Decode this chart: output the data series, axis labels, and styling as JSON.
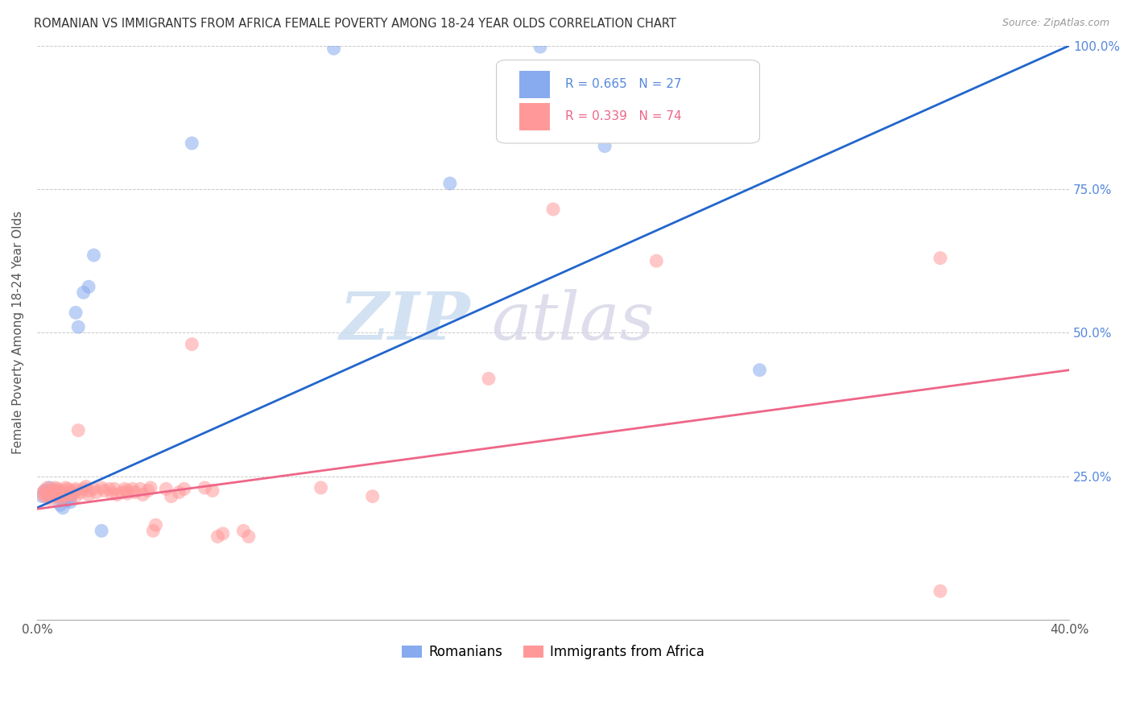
{
  "title": "ROMANIAN VS IMMIGRANTS FROM AFRICA FEMALE POVERTY AMONG 18-24 YEAR OLDS CORRELATION CHART",
  "source": "Source: ZipAtlas.com",
  "ylabel": "Female Poverty Among 18-24 Year Olds",
  "xlim": [
    0.0,
    0.4
  ],
  "ylim": [
    0.0,
    1.0
  ],
  "xticks": [
    0.0,
    0.05,
    0.1,
    0.15,
    0.2,
    0.25,
    0.3,
    0.35,
    0.4
  ],
  "yticks": [
    0.0,
    0.25,
    0.5,
    0.75,
    1.0
  ],
  "xtick_labels": [
    "0.0%",
    "",
    "",
    "",
    "",
    "",
    "",
    "",
    "40.0%"
  ],
  "ytick_labels_left": [
    "",
    "",
    "",
    "",
    ""
  ],
  "ytick_labels_right": [
    "",
    "25.0%",
    "50.0%",
    "75.0%",
    "100.0%"
  ],
  "blue_R": 0.665,
  "blue_N": 27,
  "pink_R": 0.339,
  "pink_N": 74,
  "blue_color": "#88AAEE",
  "pink_color": "#FF9999",
  "blue_line_color": "#2266CC",
  "pink_line_color": "#EE6688",
  "blue_scatter": [
    [
      0.002,
      0.215
    ],
    [
      0.003,
      0.225
    ],
    [
      0.004,
      0.22
    ],
    [
      0.005,
      0.23
    ],
    [
      0.005,
      0.215
    ],
    [
      0.006,
      0.218
    ],
    [
      0.007,
      0.225
    ],
    [
      0.008,
      0.222
    ],
    [
      0.009,
      0.2
    ],
    [
      0.01,
      0.21
    ],
    [
      0.01,
      0.195
    ],
    [
      0.011,
      0.215
    ],
    [
      0.012,
      0.208
    ],
    [
      0.013,
      0.205
    ],
    [
      0.013,
      0.215
    ],
    [
      0.015,
      0.535
    ],
    [
      0.016,
      0.51
    ],
    [
      0.018,
      0.57
    ],
    [
      0.02,
      0.58
    ],
    [
      0.022,
      0.635
    ],
    [
      0.025,
      0.155
    ],
    [
      0.06,
      0.83
    ],
    [
      0.115,
      0.995
    ],
    [
      0.195,
      0.998
    ],
    [
      0.22,
      0.825
    ],
    [
      0.16,
      0.76
    ],
    [
      0.28,
      0.435
    ]
  ],
  "pink_scatter": [
    [
      0.002,
      0.22
    ],
    [
      0.003,
      0.215
    ],
    [
      0.003,
      0.225
    ],
    [
      0.004,
      0.23
    ],
    [
      0.004,
      0.218
    ],
    [
      0.005,
      0.225
    ],
    [
      0.005,
      0.215
    ],
    [
      0.005,
      0.21
    ],
    [
      0.006,
      0.22
    ],
    [
      0.006,
      0.225
    ],
    [
      0.007,
      0.218
    ],
    [
      0.007,
      0.23
    ],
    [
      0.008,
      0.225
    ],
    [
      0.008,
      0.215
    ],
    [
      0.008,
      0.228
    ],
    [
      0.009,
      0.22
    ],
    [
      0.009,
      0.21
    ],
    [
      0.01,
      0.225
    ],
    [
      0.01,
      0.215
    ],
    [
      0.01,
      0.22
    ],
    [
      0.011,
      0.23
    ],
    [
      0.011,
      0.215
    ],
    [
      0.012,
      0.222
    ],
    [
      0.012,
      0.228
    ],
    [
      0.013,
      0.225
    ],
    [
      0.013,
      0.218
    ],
    [
      0.014,
      0.22
    ],
    [
      0.015,
      0.228
    ],
    [
      0.015,
      0.215
    ],
    [
      0.015,
      0.225
    ],
    [
      0.016,
      0.33
    ],
    [
      0.017,
      0.222
    ],
    [
      0.018,
      0.228
    ],
    [
      0.019,
      0.232
    ],
    [
      0.02,
      0.225
    ],
    [
      0.02,
      0.218
    ],
    [
      0.022,
      0.228
    ],
    [
      0.023,
      0.222
    ],
    [
      0.025,
      0.23
    ],
    [
      0.026,
      0.225
    ],
    [
      0.028,
      0.228
    ],
    [
      0.029,
      0.22
    ],
    [
      0.03,
      0.228
    ],
    [
      0.031,
      0.218
    ],
    [
      0.033,
      0.222
    ],
    [
      0.034,
      0.228
    ],
    [
      0.035,
      0.22
    ],
    [
      0.035,
      0.225
    ],
    [
      0.037,
      0.228
    ],
    [
      0.038,
      0.222
    ],
    [
      0.04,
      0.228
    ],
    [
      0.041,
      0.218
    ],
    [
      0.043,
      0.225
    ],
    [
      0.044,
      0.23
    ],
    [
      0.045,
      0.155
    ],
    [
      0.046,
      0.165
    ],
    [
      0.05,
      0.228
    ],
    [
      0.052,
      0.215
    ],
    [
      0.055,
      0.222
    ],
    [
      0.057,
      0.228
    ],
    [
      0.06,
      0.48
    ],
    [
      0.065,
      0.23
    ],
    [
      0.068,
      0.225
    ],
    [
      0.07,
      0.145
    ],
    [
      0.072,
      0.15
    ],
    [
      0.08,
      0.155
    ],
    [
      0.082,
      0.145
    ],
    [
      0.11,
      0.23
    ],
    [
      0.13,
      0.215
    ],
    [
      0.175,
      0.42
    ],
    [
      0.2,
      0.715
    ],
    [
      0.24,
      0.625
    ],
    [
      0.35,
      0.63
    ],
    [
      0.35,
      0.05
    ]
  ],
  "watermark_zip": "ZIP",
  "watermark_atlas": "atlas",
  "background_color": "#FFFFFF",
  "grid_color": "#BBBBBB"
}
